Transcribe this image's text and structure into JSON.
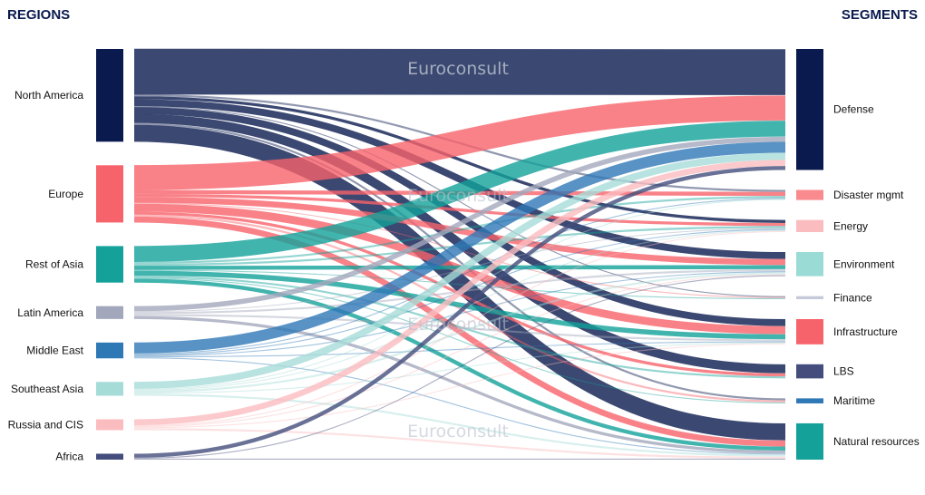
{
  "headers": {
    "left": "REGIONS",
    "right": "SEGMENTS"
  },
  "watermark": "Euroconsult",
  "colors": {
    "North America": "#0a1a4e",
    "Europe": "#f7636b",
    "Rest of Asia": "#13a19a",
    "Latin America": "#a2a7bb",
    "Middle East": "#2f78b6",
    "Southeast Asia": "#a6dcd8",
    "Russia and CIS": "#fbbcbf",
    "Africa": "#444d7c",
    "Defense": "#0a1a4e",
    "Disaster mgmt": "#f98b8e",
    "Energy": "#fbbcbf",
    "Environment": "#9bdbd6",
    "Finance": "#c5c9d9",
    "Infrastructure": "#f7636b",
    "LBS": "#444d7c",
    "Maritime": "#2f78b6",
    "Natural resources": "#13a19a"
  },
  "chart_data": {
    "type": "sankey",
    "left_title": "REGIONS",
    "right_title": "SEGMENTS",
    "sources": [
      "North America",
      "Europe",
      "Rest of Asia",
      "Latin America",
      "Middle East",
      "Southeast Asia",
      "Russia and CIS",
      "Africa"
    ],
    "targets": [
      "Defense",
      "Disaster mgmt",
      "Energy",
      "Environment",
      "Finance",
      "Infrastructure",
      "LBS",
      "Maritime",
      "Natural resources"
    ],
    "links": [
      {
        "source": "North America",
        "target": "Defense",
        "value": 46
      },
      {
        "source": "North America",
        "target": "Disaster mgmt",
        "value": 2
      },
      {
        "source": "North America",
        "target": "Energy",
        "value": 3
      },
      {
        "source": "North America",
        "target": "Environment",
        "value": 7
      },
      {
        "source": "North America",
        "target": "Finance",
        "value": 1
      },
      {
        "source": "North America",
        "target": "Infrastructure",
        "value": 7
      },
      {
        "source": "North America",
        "target": "LBS",
        "value": 9
      },
      {
        "source": "North America",
        "target": "Maritime",
        "value": 2
      },
      {
        "source": "North America",
        "target": "Natural resources",
        "value": 17
      },
      {
        "source": "Europe",
        "target": "Defense",
        "value": 25
      },
      {
        "source": "Europe",
        "target": "Disaster mgmt",
        "value": 4
      },
      {
        "source": "Europe",
        "target": "Energy",
        "value": 3
      },
      {
        "source": "Europe",
        "target": "Environment",
        "value": 6
      },
      {
        "source": "Europe",
        "target": "Finance",
        "value": 1
      },
      {
        "source": "Europe",
        "target": "Infrastructure",
        "value": 8
      },
      {
        "source": "Europe",
        "target": "LBS",
        "value": 3
      },
      {
        "source": "Europe",
        "target": "Maritime",
        "value": 2
      },
      {
        "source": "Europe",
        "target": "Natural resources",
        "value": 6
      },
      {
        "source": "Rest of Asia",
        "target": "Defense",
        "value": 16
      },
      {
        "source": "Rest of Asia",
        "target": "Disaster mgmt",
        "value": 2
      },
      {
        "source": "Rest of Asia",
        "target": "Energy",
        "value": 2
      },
      {
        "source": "Rest of Asia",
        "target": "Environment",
        "value": 4
      },
      {
        "source": "Rest of Asia",
        "target": "Finance",
        "value": 1
      },
      {
        "source": "Rest of Asia",
        "target": "Infrastructure",
        "value": 5
      },
      {
        "source": "Rest of Asia",
        "target": "LBS",
        "value": 2
      },
      {
        "source": "Rest of Asia",
        "target": "Maritime",
        "value": 1
      },
      {
        "source": "Rest of Asia",
        "target": "Natural resources",
        "value": 4
      },
      {
        "source": "Latin America",
        "target": "Defense",
        "value": 5
      },
      {
        "source": "Latin America",
        "target": "Energy",
        "value": 1
      },
      {
        "source": "Latin America",
        "target": "Environment",
        "value": 2
      },
      {
        "source": "Latin America",
        "target": "Infrastructure",
        "value": 2
      },
      {
        "source": "Latin America",
        "target": "Natural resources",
        "value": 3
      },
      {
        "source": "Middle East",
        "target": "Defense",
        "value": 11
      },
      {
        "source": "Middle East",
        "target": "Disaster mgmt",
        "value": 1
      },
      {
        "source": "Middle East",
        "target": "Energy",
        "value": 1
      },
      {
        "source": "Middle East",
        "target": "Environment",
        "value": 1
      },
      {
        "source": "Middle East",
        "target": "Infrastructure",
        "value": 1
      },
      {
        "source": "Middle East",
        "target": "Natural resources",
        "value": 1
      },
      {
        "source": "Southeast Asia",
        "target": "Defense",
        "value": 7
      },
      {
        "source": "Southeast Asia",
        "target": "Disaster mgmt",
        "value": 1
      },
      {
        "source": "Southeast Asia",
        "target": "Energy",
        "value": 1
      },
      {
        "source": "Southeast Asia",
        "target": "Environment",
        "value": 2
      },
      {
        "source": "Southeast Asia",
        "target": "Infrastructure",
        "value": 1
      },
      {
        "source": "Southeast Asia",
        "target": "Natural resources",
        "value": 2
      },
      {
        "source": "Russia and CIS",
        "target": "Defense",
        "value": 6
      },
      {
        "source": "Russia and CIS",
        "target": "Energy",
        "value": 1
      },
      {
        "source": "Russia and CIS",
        "target": "Environment",
        "value": 1
      },
      {
        "source": "Russia and CIS",
        "target": "Infrastructure",
        "value": 1
      },
      {
        "source": "Russia and CIS",
        "target": "Natural resources",
        "value": 2
      },
      {
        "source": "Africa",
        "target": "Defense",
        "value": 4
      },
      {
        "source": "Africa",
        "target": "Environment",
        "value": 1
      },
      {
        "source": "Africa",
        "target": "Natural resources",
        "value": 1
      }
    ]
  }
}
